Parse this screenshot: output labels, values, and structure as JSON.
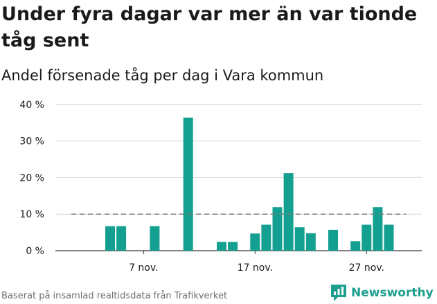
{
  "title": "Under fyra dagar var mer än var tionde tåg sent",
  "subtitle": "Andel försenade tåg per dag i Vara kommun",
  "source": "Baserat på insamlad realtidsdata från Trafikverket",
  "logo_text": "Newsworthy",
  "colors": {
    "bar": "#14a090",
    "grid": "#d4d4d4",
    "reference": "#7a7a7a",
    "logo": "#1d9f8f"
  },
  "chart_data": {
    "type": "bar",
    "title": "Under fyra dagar var mer än var tionde tåg sent",
    "subtitle": "Andel försenade tåg per dag i Vara kommun",
    "xlabel": "",
    "ylabel": "",
    "y_unit": "%",
    "ylim": [
      0,
      40
    ],
    "y_ticks": [
      0,
      10,
      20,
      30,
      40
    ],
    "y_tick_labels": [
      "0 %",
      "10 %",
      "20 %",
      "30 %",
      "40 %"
    ],
    "grid": true,
    "x_tick_labels": [
      {
        "label": "7 nov.",
        "day": 7
      },
      {
        "label": "17 nov.",
        "day": 17
      },
      {
        "label": "27 nov.",
        "day": 27
      }
    ],
    "reference_line": {
      "value": 10,
      "style": "dashed"
    },
    "days": [
      {
        "day": 4,
        "value": 6.7
      },
      {
        "day": 5,
        "value": 6.7
      },
      {
        "day": 8,
        "value": 6.7
      },
      {
        "day": 11,
        "value": 36.4
      },
      {
        "day": 14,
        "value": 2.4
      },
      {
        "day": 15,
        "value": 2.4
      },
      {
        "day": 17,
        "value": 4.7
      },
      {
        "day": 18,
        "value": 7.1
      },
      {
        "day": 19,
        "value": 11.9
      },
      {
        "day": 20,
        "value": 21.2
      },
      {
        "day": 21,
        "value": 6.4
      },
      {
        "day": 22,
        "value": 4.8
      },
      {
        "day": 24,
        "value": 5.7
      },
      {
        "day": 26,
        "value": 2.6
      },
      {
        "day": 27,
        "value": 7.1
      },
      {
        "day": 28,
        "value": 11.9
      },
      {
        "day": 29,
        "value": 7.1
      }
    ]
  }
}
